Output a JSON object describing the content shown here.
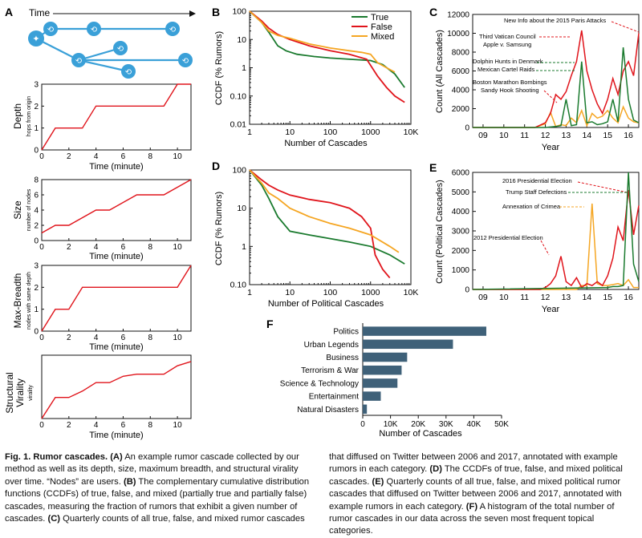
{
  "panel_labels": [
    "A",
    "B",
    "C",
    "D",
    "E",
    "F"
  ],
  "panelA": {
    "time_label": "Time",
    "small_plots": [
      {
        "label": "Depth",
        "sublabel": "hops from origin",
        "yticks": [
          0,
          1,
          2,
          3
        ]
      },
      {
        "label": "Size",
        "sublabel": "number of nodes",
        "yticks": [
          0,
          2,
          4,
          6,
          8
        ]
      },
      {
        "label": "Max-Breadth",
        "sublabel": "nodes with same depth",
        "yticks": [
          0,
          1,
          2,
          3
        ]
      },
      {
        "label1": "Structural",
        "label2": "Virality",
        "sublabel": "virality",
        "yticks": []
      }
    ],
    "xlabel": "Time (minute)",
    "xticks": [
      0,
      2,
      4,
      6,
      8,
      10
    ]
  },
  "colors": {
    "true": "#1a7a2e",
    "false": "#e0141b",
    "mixed": "#f5a623",
    "bar": "#3f6179",
    "line": "#e0141b"
  },
  "chart_data": [
    {
      "id": "A-depth",
      "type": "line",
      "x": [
        0,
        1,
        3,
        4,
        7,
        9,
        10,
        11
      ],
      "values": [
        0,
        1,
        1,
        2,
        2,
        2,
        3,
        3
      ],
      "xlim": [
        0,
        11
      ],
      "ylim": [
        0,
        3
      ],
      "ylabel": "Depth",
      "xlabel": "Time (minute)"
    },
    {
      "id": "A-size",
      "type": "line",
      "x": [
        0,
        1,
        2,
        4,
        5,
        7,
        9,
        11
      ],
      "values": [
        1,
        2,
        2,
        4,
        4,
        6,
        6,
        8
      ],
      "xlim": [
        0,
        11
      ],
      "ylim": [
        0,
        8
      ],
      "ylabel": "Size",
      "xlabel": "Time (minute)"
    },
    {
      "id": "A-breadth",
      "type": "line",
      "x": [
        0,
        1,
        2,
        3,
        6,
        10,
        11
      ],
      "values": [
        0,
        1,
        1,
        2,
        2,
        2,
        3
      ],
      "xlim": [
        0,
        11
      ],
      "ylim": [
        0,
        3
      ],
      "ylabel": "Max-Breadth",
      "xlabel": "Time (minute)"
    },
    {
      "id": "A-virality",
      "type": "line",
      "x": [
        0,
        1,
        2,
        3,
        4,
        5,
        6,
        7,
        9,
        10,
        11
      ],
      "values": [
        0,
        1.0,
        1.0,
        1.3,
        1.7,
        1.7,
        2.0,
        2.1,
        2.1,
        2.5,
        2.7
      ],
      "xlim": [
        0,
        11
      ],
      "ylim": [
        0,
        3
      ],
      "ylabel": "Structural Virality",
      "xlabel": "Time (minute)"
    },
    {
      "id": "B",
      "type": "line",
      "title": "",
      "xlabel": "Number of Cascades",
      "ylabel": "CCDF (% Rumors)",
      "xscale": "log",
      "yscale": "log",
      "xlim": [
        1,
        10000
      ],
      "ylim": [
        0.01,
        100
      ],
      "xtick_labels": [
        "1",
        "10",
        "100",
        "1000",
        "10K"
      ],
      "ytick_labels": [
        "0.01",
        "0.10",
        "1",
        "10",
        "100"
      ],
      "legend": [
        "True",
        "False",
        "Mixed"
      ],
      "legend_position": "top-right",
      "series": [
        {
          "name": "True",
          "x": [
            1,
            2,
            3,
            5,
            8,
            15,
            40,
            100,
            300,
            1000,
            2000,
            4000,
            7000
          ],
          "values": [
            100,
            40,
            18,
            6,
            4,
            3,
            2.5,
            2.2,
            2.0,
            1.8,
            1.3,
            0.6,
            0.2
          ]
        },
        {
          "name": "False",
          "x": [
            1,
            2,
            3,
            5,
            10,
            30,
            100,
            300,
            800,
            1500,
            2500,
            4000,
            7000
          ],
          "values": [
            100,
            45,
            25,
            15,
            10,
            6,
            4,
            3,
            2,
            0.5,
            0.2,
            0.1,
            0.06
          ]
        },
        {
          "name": "Mixed",
          "x": [
            1,
            2,
            3,
            5,
            10,
            30,
            100,
            300,
            600,
            1000,
            1500,
            2500,
            4000
          ],
          "values": [
            100,
            40,
            20,
            14,
            11,
            7,
            5,
            4,
            3.5,
            3,
            1.5,
            1,
            0.7
          ]
        }
      ]
    },
    {
      "id": "C",
      "type": "line",
      "xlabel": "Year",
      "ylabel": "Count (All Cascades)",
      "xlim": [
        2008.5,
        2016.5
      ],
      "ylim": [
        0,
        12000
      ],
      "xtick_labels": [
        "09",
        "10",
        "11",
        "12",
        "13",
        "14",
        "15",
        "16"
      ],
      "ytick_labels": [
        "0",
        "2000",
        "4000",
        "6000",
        "8000",
        "10000",
        "12000"
      ],
      "annotations": [
        "New Info about the 2015 Paris Attacks",
        "Third Vatican Council",
        "Apple v. Samsung",
        "Dolphin Hunts in Denmark",
        "Mexican Cartel Raids",
        "Boston Marathon Bombings",
        "Sandy Hook Shooting"
      ],
      "series": [
        {
          "name": "True",
          "x": [
            2008.5,
            2012.0,
            2012.5,
            2012.75,
            2013.0,
            2013.25,
            2013.5,
            2013.75,
            2014.0,
            2014.25,
            2014.5,
            2014.75,
            2015.0,
            2015.25,
            2015.5,
            2015.75,
            2016.0,
            2016.25,
            2016.5
          ],
          "values": [
            0,
            0,
            100,
            200,
            3000,
            200,
            300,
            7000,
            500,
            600,
            300,
            400,
            600,
            3000,
            600,
            8500,
            3000,
            800,
            500
          ]
        },
        {
          "name": "False",
          "x": [
            2008.5,
            2011.5,
            2012.0,
            2012.25,
            2012.5,
            2012.75,
            2013.0,
            2013.25,
            2013.5,
            2013.75,
            2014.0,
            2014.25,
            2014.5,
            2014.75,
            2015.0,
            2015.25,
            2015.5,
            2015.75,
            2016.0,
            2016.25,
            2016.5
          ],
          "values": [
            0,
            0,
            500,
            1500,
            3500,
            3000,
            3800,
            5500,
            7000,
            10300,
            6000,
            4000,
            2500,
            1500,
            3000,
            5200,
            3500,
            6000,
            7000,
            5500,
            10000
          ]
        },
        {
          "name": "Mixed",
          "x": [
            2008.5,
            2011.5,
            2012.0,
            2012.25,
            2012.5,
            2012.75,
            2013.0,
            2013.25,
            2013.5,
            2013.75,
            2014.0,
            2014.25,
            2014.5,
            2014.75,
            2015.0,
            2015.25,
            2015.5,
            2015.75,
            2016.0,
            2016.25,
            2016.5
          ],
          "values": [
            0,
            0,
            400,
            1600,
            100,
            300,
            200,
            1000,
            500,
            1800,
            200,
            1500,
            1000,
            1200,
            1800,
            1000,
            500,
            2200,
            1000,
            600,
            500
          ]
        }
      ]
    },
    {
      "id": "D",
      "type": "line",
      "xlabel": "Number of Political Cascades",
      "ylabel": "CCDF (% Rumors)",
      "xscale": "log",
      "yscale": "log",
      "xlim": [
        1,
        10000
      ],
      "ylim": [
        0.1,
        100
      ],
      "xtick_labels": [
        "1",
        "10",
        "100",
        "1000",
        "10K"
      ],
      "ytick_labels": [
        "0.10",
        "1",
        "10",
        "100"
      ],
      "series": [
        {
          "name": "True",
          "x": [
            1,
            2,
            3,
            5,
            10,
            30,
            100,
            300,
            1000,
            3000,
            7000
          ],
          "values": [
            100,
            40,
            18,
            6,
            2.5,
            2.0,
            1.6,
            1.3,
            1.0,
            0.6,
            0.35
          ]
        },
        {
          "name": "False",
          "x": [
            1,
            2,
            3,
            5,
            10,
            30,
            100,
            300,
            600,
            1000,
            1300,
            2000,
            3000
          ],
          "values": [
            100,
            55,
            40,
            30,
            22,
            17,
            14,
            10,
            6,
            3,
            0.6,
            0.25,
            0.15
          ]
        },
        {
          "name": "Mixed",
          "x": [
            1,
            2,
            3,
            5,
            10,
            30,
            100,
            300,
            1000,
            3000,
            5000
          ],
          "values": [
            100,
            45,
            25,
            18,
            10,
            6,
            4,
            3,
            2,
            1.0,
            0.7
          ]
        }
      ]
    },
    {
      "id": "E",
      "type": "line",
      "xlabel": "Year",
      "ylabel": "Count (Political Cascades)",
      "xlim": [
        2008.5,
        2016.5
      ],
      "ylim": [
        0,
        6000
      ],
      "xtick_labels": [
        "09",
        "10",
        "11",
        "12",
        "13",
        "14",
        "15",
        "16"
      ],
      "ytick_labels": [
        "0",
        "1000",
        "2000",
        "3000",
        "4000",
        "5000",
        "6000"
      ],
      "annotations": [
        "2016 Presidential Election",
        "Trump Staff Defections",
        "Annexation of Crimea",
        "2012 Presidential Election"
      ],
      "series": [
        {
          "name": "True",
          "x": [
            2008.5,
            2015.0,
            2015.25,
            2015.5,
            2015.75,
            2016.0,
            2016.25,
            2016.5
          ],
          "values": [
            0,
            100,
            150,
            150,
            200,
            6000,
            1300,
            400
          ]
        },
        {
          "name": "False",
          "x": [
            2008.5,
            2011.75,
            2012.0,
            2012.25,
            2012.5,
            2012.75,
            2013.0,
            2013.25,
            2013.5,
            2013.75,
            2014.0,
            2014.25,
            2014.5,
            2014.75,
            2015.0,
            2015.25,
            2015.5,
            2015.75,
            2016.0,
            2016.25,
            2016.5
          ],
          "values": [
            0,
            0,
            100,
            300,
            700,
            1700,
            400,
            200,
            600,
            100,
            300,
            200,
            400,
            200,
            700,
            1600,
            3200,
            2500,
            5100,
            2800,
            4300
          ]
        },
        {
          "name": "Mixed",
          "x": [
            2008.5,
            2013.5,
            2013.75,
            2014.0,
            2014.25,
            2014.5,
            2014.75,
            2015.0,
            2015.5,
            2015.75,
            2016.0,
            2016.25,
            2016.5
          ],
          "values": [
            0,
            0,
            200,
            200,
            4400,
            300,
            200,
            200,
            300,
            200,
            500,
            100,
            100
          ]
        }
      ]
    },
    {
      "id": "F",
      "type": "bar",
      "orientation": "horizontal",
      "xlabel": "Number of Cascades",
      "categories": [
        "Politics",
        "Urban Legends",
        "Business",
        "Terrorism & War",
        "Science & Technology",
        "Entertainment",
        "Natural Disasters"
      ],
      "values": [
        44500,
        32500,
        16000,
        14000,
        12500,
        6500,
        1500
      ],
      "xlim": [
        0,
        50000
      ],
      "xtick_labels": [
        "0",
        "10K",
        "20K",
        "30K",
        "40K",
        "50K"
      ]
    }
  ],
  "caption": {
    "title": "Fig. 1. Rumor cascades.",
    "left": [
      {
        "b": "(A)",
        "t": " An example rumor cascade collected by our method as well as its depth, size, maximum breadth, and structural virality over time. “Nodes” are users. "
      },
      {
        "b": "(B)",
        "t": " The complementary cumulative distribution functions (CCDFs) of true, false, and mixed (partially true and partially false) cascades, measuring the fraction of rumors that exhibit a given number of cascades. "
      },
      {
        "b": "(C)",
        "t": " Quarterly counts of all true, false, and mixed rumor cascades"
      }
    ],
    "right": [
      {
        "b": "",
        "t": "that diffused on Twitter between 2006 and 2017, annotated with example rumors in each category. "
      },
      {
        "b": "(D)",
        "t": " The CCDFs of true, false, and mixed political cascades. "
      },
      {
        "b": "(E)",
        "t": " Quarterly counts of all true, false, and mixed political rumor cascades that diffused on Twitter between 2006 and 2017, annotated with example rumors in each category. "
      },
      {
        "b": "(F)",
        "t": " A histogram of the total number of rumor cascades in our data across the seven most frequent topical categories."
      }
    ]
  }
}
